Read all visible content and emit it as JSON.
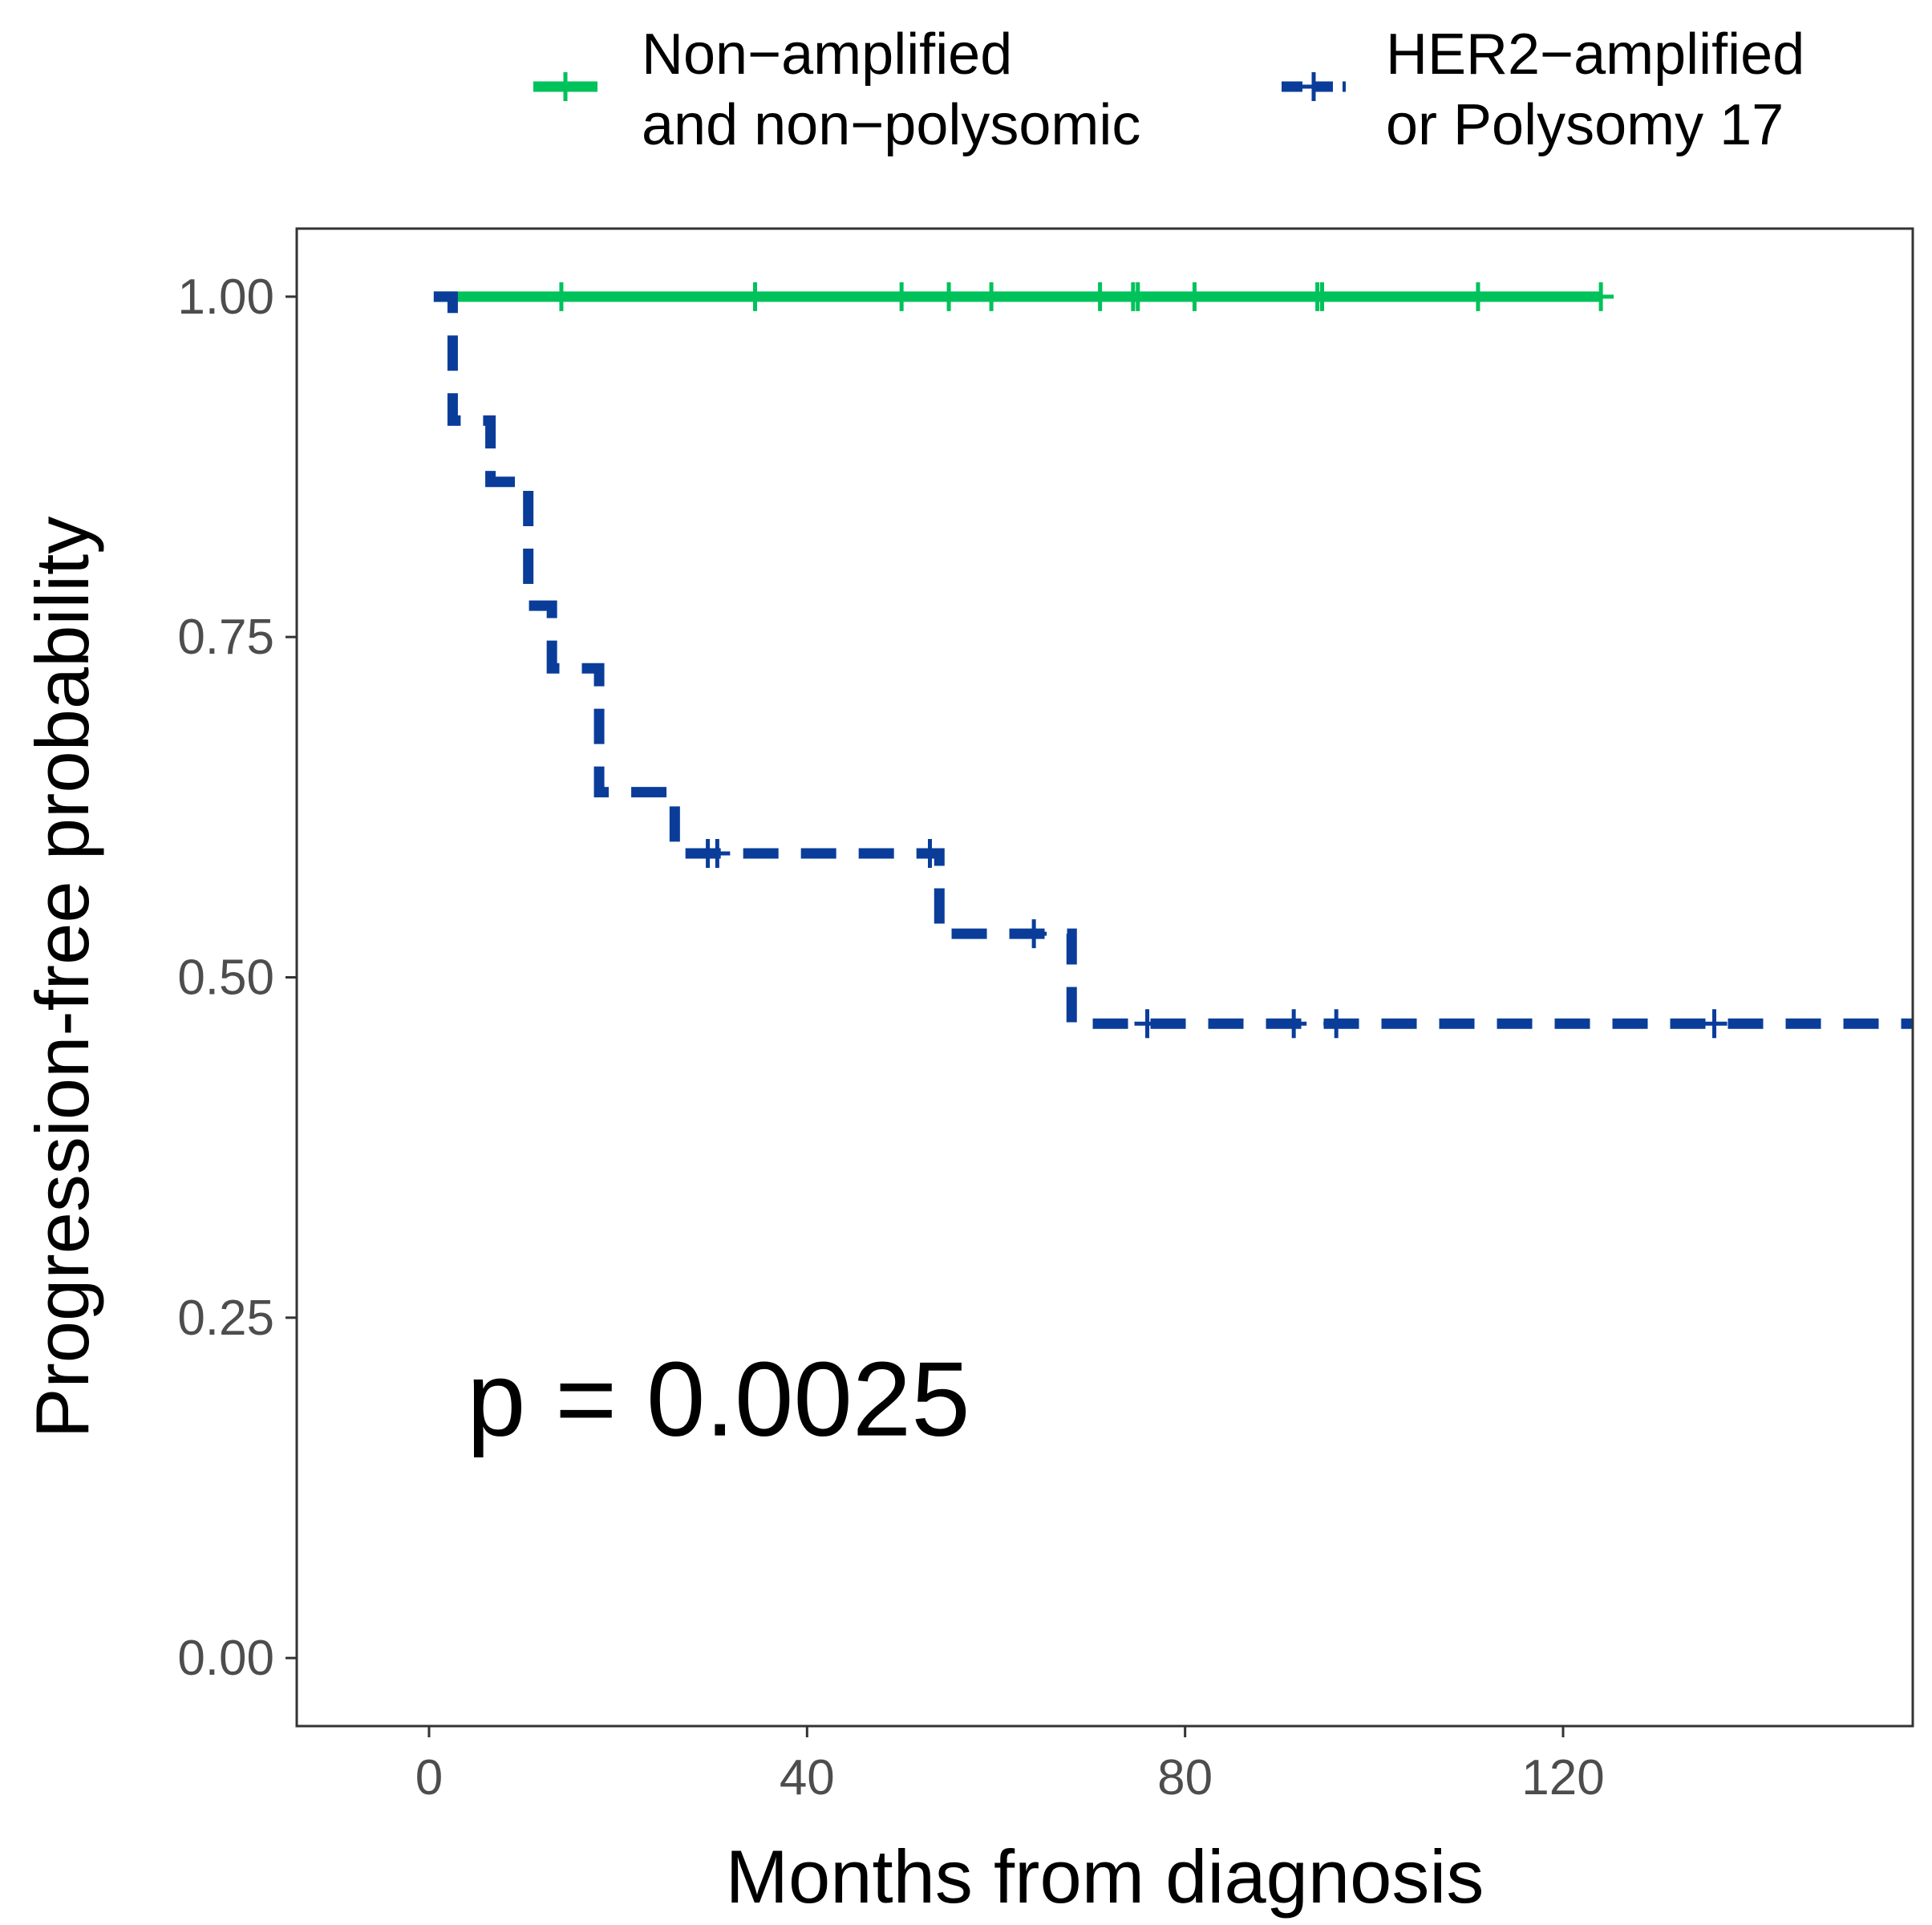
{
  "chart_data": {
    "type": "line",
    "subtype": "kaplan-meier step",
    "xlabel": "Months from diagnosis",
    "ylabel": "Progression-free probability",
    "xlim": [
      -14,
      157
    ],
    "ylim": [
      -0.05,
      1.05
    ],
    "xticks": [
      0,
      40,
      80,
      120
    ],
    "yticks": [
      0.0,
      0.25,
      0.5,
      0.75,
      1.0
    ],
    "ytick_labels": [
      "0.00",
      "0.25",
      "0.50",
      "0.75",
      "1.00"
    ],
    "grid": false,
    "legend_position": "top",
    "annotation": {
      "text": "p = 0.0025",
      "x": 4,
      "y": 0.19
    },
    "series": [
      {
        "name": "Non-amplified\nand non-polysomic",
        "name_lines": [
          "Non−amplified",
          "and non−polysomic"
        ],
        "color": "#00c25a",
        "dash": "solid",
        "steps": [
          [
            0.5,
            1.0
          ]
        ],
        "end_x": 124,
        "censored": [
          [
            14,
            1.0
          ],
          [
            34.5,
            1.0
          ],
          [
            50,
            1.0
          ],
          [
            55,
            1.0
          ],
          [
            59.5,
            1.0
          ],
          [
            71,
            1.0
          ],
          [
            74.5,
            1.0
          ],
          [
            75,
            1.0
          ],
          [
            81,
            1.0
          ],
          [
            94,
            1.0
          ],
          [
            94.5,
            1.0
          ],
          [
            111,
            1.0
          ],
          [
            124,
            1.0
          ]
        ]
      },
      {
        "name": "HER2-amplified\nor Polysomy 17",
        "name_lines": [
          "HER2−amplified",
          "or Polysomy 17"
        ],
        "color": "#0a3d9a",
        "dash": "dashed",
        "steps": [
          [
            0.5,
            1.0
          ],
          [
            2.5,
            0.909
          ],
          [
            6.5,
            0.864
          ],
          [
            10.5,
            0.773
          ],
          [
            13,
            0.727
          ],
          [
            18,
            0.636
          ],
          [
            26,
            0.591
          ],
          [
            54,
            0.532
          ],
          [
            68,
            0.466
          ]
        ],
        "end_x": 157,
        "censored": [
          [
            29.5,
            0.591
          ],
          [
            30.5,
            0.591
          ],
          [
            53,
            0.591
          ],
          [
            64,
            0.532
          ],
          [
            76,
            0.466
          ],
          [
            91.5,
            0.466
          ],
          [
            96,
            0.466
          ],
          [
            136,
            0.466
          ]
        ]
      }
    ]
  }
}
